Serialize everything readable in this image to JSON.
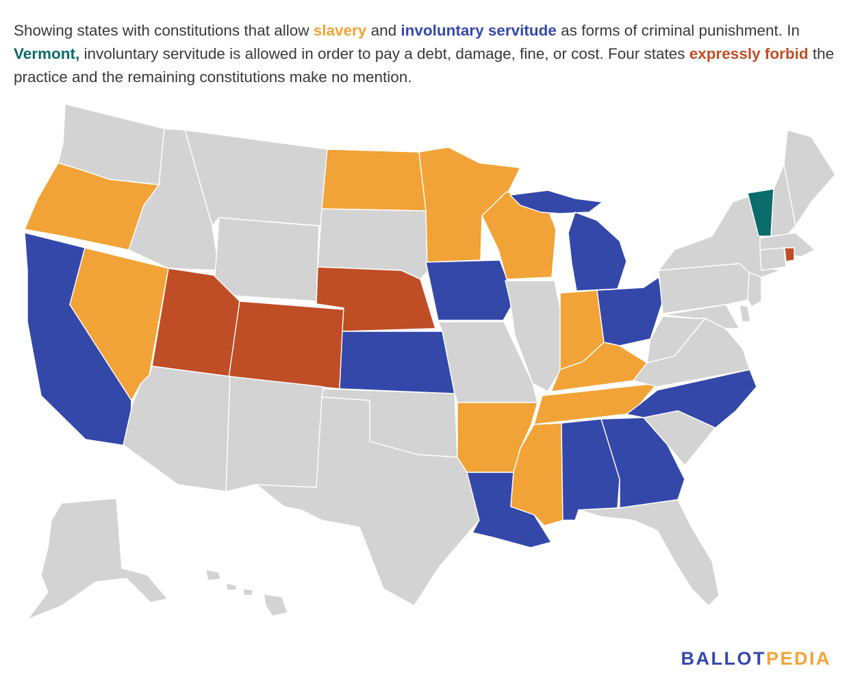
{
  "caption": {
    "part1": "Showing states with constitutions that allow ",
    "slavery": "slavery",
    "part2": " and ",
    "servitude": "involuntary servitude",
    "part3": " as forms of criminal punishment. In ",
    "vermont": "Vermont,",
    "part4": " involuntary servitude is allowed in order to pay a debt, damage, fine, or cost. Four states ",
    "forbid": "expressly forbid",
    "part5": " the practice and the remaining constitutions make no mention."
  },
  "colors": {
    "slavery": "#F1A337",
    "servitude": "#3448AA",
    "vermont": "#0C6B6B",
    "forbid": "#BF4D26",
    "none": "#D3D3D3",
    "logo_ballot": "#3448AA",
    "logo_pedia": "#F1A337"
  },
  "categories": {
    "slavery": [
      "OR",
      "NV",
      "ND",
      "MN",
      "WI",
      "IN",
      "KY",
      "TN",
      "AR",
      "MS"
    ],
    "servitude": [
      "CA",
      "KS",
      "IA",
      "MI",
      "OH",
      "NC",
      "AL",
      "GA",
      "LA"
    ],
    "vermont": [
      "VT"
    ],
    "forbid": [
      "UT",
      "CO",
      "NE",
      "RI"
    ],
    "none": [
      "WA",
      "ID",
      "MT",
      "WY",
      "SD",
      "AZ",
      "NM",
      "TX",
      "OK",
      "MO",
      "IL",
      "PA",
      "NY",
      "ME",
      "NH",
      "MA",
      "CT",
      "NJ",
      "DE",
      "MD",
      "VA",
      "WV",
      "SC",
      "FL",
      "AK",
      "HI"
    ]
  },
  "logo": {
    "ballot": "BALLOT",
    "pedia": "PEDIA"
  }
}
